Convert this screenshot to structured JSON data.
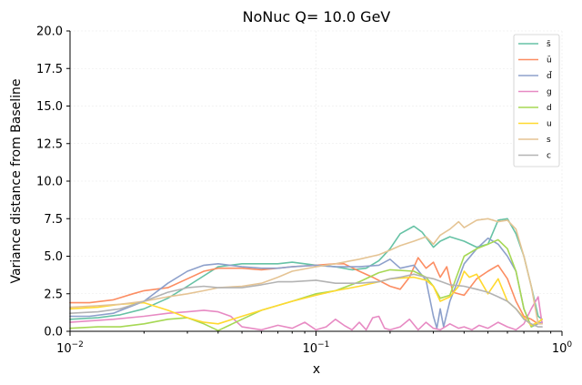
{
  "chart_data": {
    "type": "line",
    "title": "NoNuc Q= 10.0 GeV",
    "xlabel": "x",
    "ylabel": "Variance distance from Baseline",
    "xscale": "log",
    "xlim": [
      0.01,
      1.0
    ],
    "ylim": [
      0,
      20
    ],
    "x_ticks": [
      {
        "value": 0.01,
        "base": "10",
        "exp": "−2"
      },
      {
        "value": 0.1,
        "base": "10",
        "exp": "−1"
      },
      {
        "value": 1.0,
        "base": "10",
        "exp": "0"
      }
    ],
    "y_ticks": [
      "0.0",
      "2.5",
      "5.0",
      "7.5",
      "10.0",
      "12.5",
      "15.0",
      "17.5",
      "20.0"
    ],
    "grid": true,
    "legend_position": "top-right",
    "series": [
      {
        "name": "s̄",
        "color": "#66c2a5",
        "x": [
          0.01,
          0.013,
          0.016,
          0.02,
          0.025,
          0.03,
          0.04,
          0.05,
          0.06,
          0.07,
          0.08,
          0.09,
          0.1,
          0.12,
          0.14,
          0.16,
          0.18,
          0.2,
          0.22,
          0.25,
          0.27,
          0.3,
          0.32,
          0.35,
          0.4,
          0.45,
          0.5,
          0.55,
          0.6,
          0.65,
          0.7,
          0.75,
          0.8,
          0.83
        ],
        "y": [
          0.8,
          0.9,
          1.1,
          1.5,
          2.2,
          3.0,
          4.3,
          4.5,
          4.5,
          4.5,
          4.6,
          4.5,
          4.4,
          4.3,
          4.1,
          4.2,
          4.7,
          5.5,
          6.5,
          7.0,
          6.6,
          5.6,
          6.0,
          6.3,
          6.0,
          5.6,
          5.8,
          7.4,
          7.5,
          6.5,
          5.0,
          3.0,
          1.0,
          0.8
        ]
      },
      {
        "name": "ū",
        "color": "#fc8d62",
        "x": [
          0.01,
          0.012,
          0.015,
          0.018,
          0.02,
          0.025,
          0.03,
          0.035,
          0.04,
          0.05,
          0.06,
          0.07,
          0.08,
          0.1,
          0.12,
          0.13,
          0.15,
          0.17,
          0.2,
          0.22,
          0.24,
          0.26,
          0.28,
          0.3,
          0.32,
          0.34,
          0.36,
          0.4,
          0.45,
          0.5,
          0.55,
          0.6,
          0.65,
          0.7,
          0.75,
          0.8,
          0.83
        ],
        "y": [
          1.9,
          1.9,
          2.1,
          2.5,
          2.7,
          2.9,
          3.5,
          4.0,
          4.2,
          4.2,
          4.1,
          4.2,
          4.3,
          4.4,
          4.5,
          4.5,
          4.0,
          3.6,
          3.0,
          2.8,
          3.6,
          4.9,
          4.2,
          4.6,
          3.6,
          4.3,
          2.6,
          2.4,
          3.5,
          4.0,
          4.4,
          3.5,
          2.0,
          1.0,
          0.8,
          0.5,
          0.6
        ]
      },
      {
        "name": "d̄",
        "color": "#8da0cb",
        "x": [
          0.01,
          0.012,
          0.015,
          0.02,
          0.025,
          0.03,
          0.035,
          0.04,
          0.05,
          0.06,
          0.07,
          0.08,
          0.1,
          0.12,
          0.15,
          0.18,
          0.2,
          0.22,
          0.25,
          0.28,
          0.3,
          0.31,
          0.32,
          0.33,
          0.35,
          0.38,
          0.4,
          0.45,
          0.5,
          0.55,
          0.6,
          0.65,
          0.7,
          0.75,
          0.8,
          0.83
        ],
        "y": [
          1.0,
          1.0,
          1.2,
          2.0,
          3.2,
          4.0,
          4.4,
          4.5,
          4.3,
          4.2,
          4.2,
          4.3,
          4.4,
          4.3,
          4.3,
          4.4,
          4.8,
          4.2,
          4.4,
          3.4,
          1.0,
          0.2,
          1.5,
          0.3,
          2.0,
          3.5,
          4.5,
          5.5,
          6.2,
          5.8,
          5.0,
          4.0,
          1.5,
          0.3,
          0.5,
          0.6
        ]
      },
      {
        "name": "g",
        "color": "#e78ac3",
        "x": [
          0.01,
          0.015,
          0.02,
          0.025,
          0.03,
          0.035,
          0.04,
          0.045,
          0.05,
          0.06,
          0.07,
          0.08,
          0.09,
          0.1,
          0.11,
          0.12,
          0.13,
          0.14,
          0.15,
          0.16,
          0.17,
          0.18,
          0.19,
          0.2,
          0.22,
          0.24,
          0.26,
          0.28,
          0.3,
          0.32,
          0.35,
          0.38,
          0.4,
          0.43,
          0.46,
          0.5,
          0.55,
          0.6,
          0.65,
          0.7,
          0.75,
          0.8,
          0.83
        ],
        "y": [
          0.6,
          0.8,
          1.0,
          1.2,
          1.3,
          1.4,
          1.3,
          1.0,
          0.3,
          0.1,
          0.4,
          0.2,
          0.6,
          0.1,
          0.3,
          0.8,
          0.4,
          0.1,
          0.6,
          0.1,
          0.9,
          1.0,
          0.2,
          0.1,
          0.3,
          0.8,
          0.1,
          0.6,
          0.2,
          0.1,
          0.5,
          0.2,
          0.3,
          0.1,
          0.4,
          0.2,
          0.6,
          0.3,
          0.1,
          0.5,
          1.5,
          2.3,
          0.5
        ]
      },
      {
        "name": "d",
        "color": "#a6d854",
        "x": [
          0.01,
          0.013,
          0.016,
          0.02,
          0.025,
          0.03,
          0.035,
          0.04,
          0.05,
          0.06,
          0.08,
          0.1,
          0.12,
          0.15,
          0.18,
          0.2,
          0.25,
          0.28,
          0.3,
          0.32,
          0.35,
          0.38,
          0.4,
          0.45,
          0.5,
          0.55,
          0.6,
          0.65,
          0.7,
          0.75,
          0.8,
          0.83
        ],
        "y": [
          0.2,
          0.3,
          0.3,
          0.5,
          0.8,
          0.9,
          0.5,
          0.05,
          0.8,
          1.4,
          2.0,
          2.5,
          2.7,
          3.3,
          3.9,
          4.1,
          4.0,
          3.6,
          3.0,
          2.2,
          2.4,
          4.0,
          5.0,
          5.5,
          5.8,
          6.1,
          5.5,
          4.0,
          1.5,
          0.3,
          0.6,
          0.8
        ]
      },
      {
        "name": "u",
        "color": "#ffd92f",
        "x": [
          0.01,
          0.013,
          0.016,
          0.02,
          0.025,
          0.03,
          0.035,
          0.04,
          0.05,
          0.06,
          0.08,
          0.1,
          0.12,
          0.15,
          0.18,
          0.2,
          0.25,
          0.28,
          0.3,
          0.32,
          0.35,
          0.38,
          0.4,
          0.42,
          0.45,
          0.5,
          0.55,
          0.6,
          0.65,
          0.7,
          0.75,
          0.8,
          0.83
        ],
        "y": [
          1.5,
          1.6,
          1.8,
          1.9,
          1.4,
          0.9,
          0.6,
          0.5,
          1.0,
          1.4,
          2.0,
          2.4,
          2.7,
          3.0,
          3.3,
          3.5,
          3.6,
          3.4,
          3.0,
          2.0,
          2.3,
          3.0,
          4.0,
          3.6,
          3.8,
          2.5,
          3.5,
          2.0,
          1.5,
          0.9,
          0.4,
          0.6,
          0.8
        ]
      },
      {
        "name": "s",
        "color": "#e5c494",
        "x": [
          0.01,
          0.013,
          0.016,
          0.02,
          0.025,
          0.03,
          0.035,
          0.04,
          0.05,
          0.06,
          0.07,
          0.08,
          0.1,
          0.12,
          0.15,
          0.18,
          0.2,
          0.22,
          0.25,
          0.28,
          0.3,
          0.32,
          0.35,
          0.38,
          0.4,
          0.45,
          0.5,
          0.55,
          0.6,
          0.65,
          0.7,
          0.75,
          0.8,
          0.83
        ],
        "y": [
          1.6,
          1.7,
          1.8,
          2.0,
          2.3,
          2.5,
          2.7,
          2.9,
          3.0,
          3.2,
          3.6,
          4.0,
          4.3,
          4.5,
          4.8,
          5.1,
          5.4,
          5.7,
          6.0,
          6.3,
          5.8,
          6.4,
          6.8,
          7.3,
          6.9,
          7.4,
          7.5,
          7.3,
          7.4,
          6.8,
          5.0,
          3.0,
          0.5,
          0.5
        ]
      },
      {
        "name": "c",
        "color": "#b3b3b3",
        "x": [
          0.01,
          0.013,
          0.016,
          0.02,
          0.025,
          0.03,
          0.035,
          0.04,
          0.05,
          0.06,
          0.07,
          0.08,
          0.1,
          0.12,
          0.15,
          0.18,
          0.2,
          0.22,
          0.25,
          0.28,
          0.3,
          0.35,
          0.4,
          0.45,
          0.5,
          0.55,
          0.6,
          0.65,
          0.7,
          0.75,
          0.8,
          0.83
        ],
        "y": [
          1.2,
          1.3,
          1.5,
          2.0,
          2.6,
          2.9,
          3.0,
          2.9,
          2.9,
          3.1,
          3.3,
          3.3,
          3.4,
          3.2,
          3.2,
          3.3,
          3.5,
          3.6,
          3.8,
          3.6,
          3.5,
          3.1,
          3.0,
          2.8,
          2.6,
          2.3,
          2.0,
          1.5,
          0.8,
          0.5,
          0.3,
          0.3
        ]
      }
    ]
  }
}
